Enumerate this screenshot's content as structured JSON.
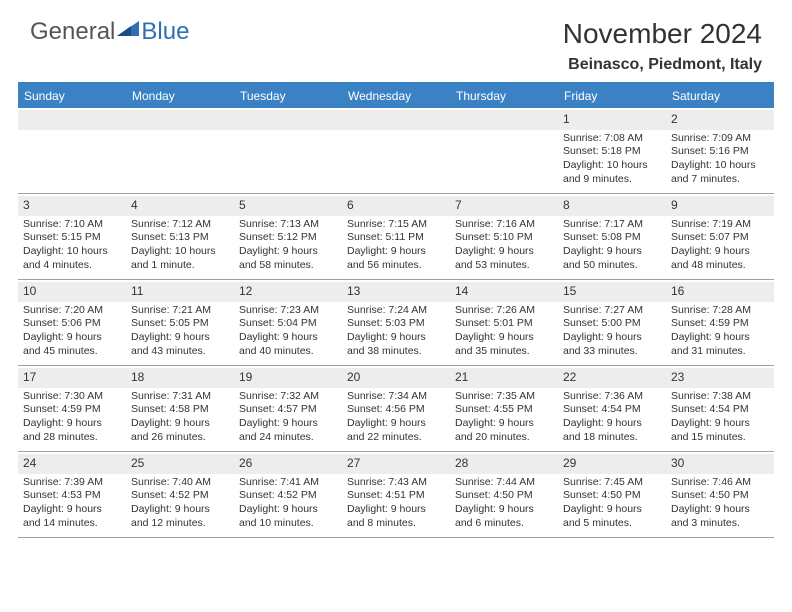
{
  "logo": {
    "part1": "General",
    "part2": "Blue"
  },
  "title": "November 2024",
  "location": "Beinasco, Piedmont, Italy",
  "colors": {
    "brand_blue": "#3b82c4",
    "logo_blue": "#2e6fb5",
    "header_bg": "#3b82c4",
    "daynum_bg": "#ededed",
    "cell_border": "#8fa3b0",
    "text": "#333333",
    "bg": "#ffffff"
  },
  "weekdays": [
    "Sunday",
    "Monday",
    "Tuesday",
    "Wednesday",
    "Thursday",
    "Friday",
    "Saturday"
  ],
  "days": [
    {
      "n": 1,
      "sunrise": "7:08 AM",
      "sunset": "5:18 PM",
      "daylight": "10 hours and 9 minutes."
    },
    {
      "n": 2,
      "sunrise": "7:09 AM",
      "sunset": "5:16 PM",
      "daylight": "10 hours and 7 minutes."
    },
    {
      "n": 3,
      "sunrise": "7:10 AM",
      "sunset": "5:15 PM",
      "daylight": "10 hours and 4 minutes."
    },
    {
      "n": 4,
      "sunrise": "7:12 AM",
      "sunset": "5:13 PM",
      "daylight": "10 hours and 1 minute."
    },
    {
      "n": 5,
      "sunrise": "7:13 AM",
      "sunset": "5:12 PM",
      "daylight": "9 hours and 58 minutes."
    },
    {
      "n": 6,
      "sunrise": "7:15 AM",
      "sunset": "5:11 PM",
      "daylight": "9 hours and 56 minutes."
    },
    {
      "n": 7,
      "sunrise": "7:16 AM",
      "sunset": "5:10 PM",
      "daylight": "9 hours and 53 minutes."
    },
    {
      "n": 8,
      "sunrise": "7:17 AM",
      "sunset": "5:08 PM",
      "daylight": "9 hours and 50 minutes."
    },
    {
      "n": 9,
      "sunrise": "7:19 AM",
      "sunset": "5:07 PM",
      "daylight": "9 hours and 48 minutes."
    },
    {
      "n": 10,
      "sunrise": "7:20 AM",
      "sunset": "5:06 PM",
      "daylight": "9 hours and 45 minutes."
    },
    {
      "n": 11,
      "sunrise": "7:21 AM",
      "sunset": "5:05 PM",
      "daylight": "9 hours and 43 minutes."
    },
    {
      "n": 12,
      "sunrise": "7:23 AM",
      "sunset": "5:04 PM",
      "daylight": "9 hours and 40 minutes."
    },
    {
      "n": 13,
      "sunrise": "7:24 AM",
      "sunset": "5:03 PM",
      "daylight": "9 hours and 38 minutes."
    },
    {
      "n": 14,
      "sunrise": "7:26 AM",
      "sunset": "5:01 PM",
      "daylight": "9 hours and 35 minutes."
    },
    {
      "n": 15,
      "sunrise": "7:27 AM",
      "sunset": "5:00 PM",
      "daylight": "9 hours and 33 minutes."
    },
    {
      "n": 16,
      "sunrise": "7:28 AM",
      "sunset": "4:59 PM",
      "daylight": "9 hours and 31 minutes."
    },
    {
      "n": 17,
      "sunrise": "7:30 AM",
      "sunset": "4:59 PM",
      "daylight": "9 hours and 28 minutes."
    },
    {
      "n": 18,
      "sunrise": "7:31 AM",
      "sunset": "4:58 PM",
      "daylight": "9 hours and 26 minutes."
    },
    {
      "n": 19,
      "sunrise": "7:32 AM",
      "sunset": "4:57 PM",
      "daylight": "9 hours and 24 minutes."
    },
    {
      "n": 20,
      "sunrise": "7:34 AM",
      "sunset": "4:56 PM",
      "daylight": "9 hours and 22 minutes."
    },
    {
      "n": 21,
      "sunrise": "7:35 AM",
      "sunset": "4:55 PM",
      "daylight": "9 hours and 20 minutes."
    },
    {
      "n": 22,
      "sunrise": "7:36 AM",
      "sunset": "4:54 PM",
      "daylight": "9 hours and 18 minutes."
    },
    {
      "n": 23,
      "sunrise": "7:38 AM",
      "sunset": "4:54 PM",
      "daylight": "9 hours and 15 minutes."
    },
    {
      "n": 24,
      "sunrise": "7:39 AM",
      "sunset": "4:53 PM",
      "daylight": "9 hours and 14 minutes."
    },
    {
      "n": 25,
      "sunrise": "7:40 AM",
      "sunset": "4:52 PM",
      "daylight": "9 hours and 12 minutes."
    },
    {
      "n": 26,
      "sunrise": "7:41 AM",
      "sunset": "4:52 PM",
      "daylight": "9 hours and 10 minutes."
    },
    {
      "n": 27,
      "sunrise": "7:43 AM",
      "sunset": "4:51 PM",
      "daylight": "9 hours and 8 minutes."
    },
    {
      "n": 28,
      "sunrise": "7:44 AM",
      "sunset": "4:50 PM",
      "daylight": "9 hours and 6 minutes."
    },
    {
      "n": 29,
      "sunrise": "7:45 AM",
      "sunset": "4:50 PM",
      "daylight": "9 hours and 5 minutes."
    },
    {
      "n": 30,
      "sunrise": "7:46 AM",
      "sunset": "4:50 PM",
      "daylight": "9 hours and 3 minutes."
    }
  ],
  "labels": {
    "sunrise": "Sunrise:",
    "sunset": "Sunset:",
    "daylight": "Daylight:"
  },
  "first_weekday_index": 5
}
